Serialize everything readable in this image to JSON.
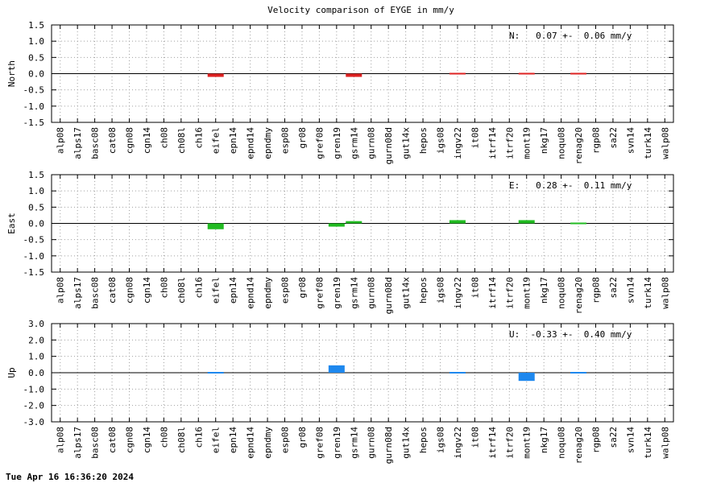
{
  "title": "Velocity comparison of EYGE in mm/y",
  "timestamp": "Tue Apr 16 16:36:20 2024",
  "chart_data": [
    {
      "type": "bar",
      "ylabel": "North",
      "ylim": [
        -1.5,
        1.5
      ],
      "ytick_labels": [
        "1.5",
        "1.0",
        "0.5",
        "0.0",
        "-0.5",
        "-1.0",
        "-1.5"
      ],
      "grid": true,
      "color": "#dd2222",
      "summary": "N:   0.07 +-  0.06 mm/y",
      "categories": [
        "alp08",
        "alps17",
        "basc08",
        "cat08",
        "cgn08",
        "cgn14",
        "ch08",
        "ch08l",
        "ch16",
        "eifel",
        "epn14",
        "epnd14",
        "epndmy",
        "esp08",
        "gr08",
        "gref08",
        "gren19",
        "gsrm14",
        "gurn08",
        "gurn08d",
        "gut14x",
        "hepos",
        "igs08",
        "ingv22",
        "it08",
        "itrf14",
        "itrf20",
        "mont19",
        "nkg17",
        "noqu08",
        "renag20",
        "rgp08",
        "sa22",
        "svn14",
        "turk14",
        "walp08"
      ],
      "values": [
        null,
        null,
        null,
        null,
        null,
        null,
        null,
        null,
        null,
        -0.1,
        null,
        null,
        null,
        null,
        null,
        null,
        null,
        -0.1,
        null,
        null,
        null,
        null,
        null,
        0.03,
        null,
        null,
        null,
        0.0,
        null,
        null,
        -0.03,
        null,
        null,
        null,
        null,
        null
      ]
    },
    {
      "type": "bar",
      "ylabel": "East",
      "ylim": [
        -1.5,
        1.5
      ],
      "ytick_labels": [
        "1.5",
        "1.0",
        "0.5",
        "0.0",
        "-0.5",
        "-1.0",
        "-1.5"
      ],
      "grid": true,
      "color": "#22bb22",
      "summary": "E:   0.28 +-  0.11 mm/y",
      "categories": [
        "alp08",
        "alps17",
        "basc08",
        "cat08",
        "cgn08",
        "cgn14",
        "ch08",
        "ch08l",
        "ch16",
        "eifel",
        "epn14",
        "epnd14",
        "epndmy",
        "esp08",
        "gr08",
        "gref08",
        "gren19",
        "gsrm14",
        "gurn08",
        "gurn08d",
        "gut14x",
        "hepos",
        "igs08",
        "ingv22",
        "it08",
        "itrf14",
        "itrf20",
        "mont19",
        "nkg17",
        "noqu08",
        "renag20",
        "rgp08",
        "sa22",
        "svn14",
        "turk14",
        "walp08"
      ],
      "values": [
        null,
        null,
        null,
        null,
        null,
        null,
        null,
        null,
        null,
        -0.18,
        null,
        null,
        null,
        null,
        null,
        null,
        -0.1,
        0.07,
        null,
        null,
        null,
        null,
        null,
        0.1,
        null,
        null,
        null,
        0.1,
        null,
        null,
        0.02,
        null,
        null,
        null,
        null,
        null
      ]
    },
    {
      "type": "bar",
      "ylabel": "Up",
      "ylim": [
        -3.0,
        3.0
      ],
      "ytick_labels": [
        "3.0",
        "2.0",
        "1.0",
        "0.0",
        "-1.0",
        "-2.0",
        "-3.0"
      ],
      "grid": true,
      "color": "#1e88ee",
      "summary": "U:  -0.33 +-  0.40 mm/y",
      "categories": [
        "alp08",
        "alps17",
        "basc08",
        "cat08",
        "cgn08",
        "cgn14",
        "ch08",
        "ch08l",
        "ch16",
        "eifel",
        "epn14",
        "epnd14",
        "epndmy",
        "esp08",
        "gr08",
        "gref08",
        "gren19",
        "gsrm14",
        "gurn08",
        "gurn08d",
        "gut14x",
        "hepos",
        "igs08",
        "ingv22",
        "it08",
        "itrf14",
        "itrf20",
        "mont19",
        "nkg17",
        "noqu08",
        "renag20",
        "rgp08",
        "sa22",
        "svn14",
        "turk14",
        "walp08"
      ],
      "values": [
        null,
        null,
        null,
        null,
        null,
        null,
        null,
        null,
        null,
        0.03,
        null,
        null,
        null,
        null,
        null,
        null,
        0.45,
        null,
        null,
        null,
        null,
        null,
        null,
        -0.05,
        null,
        null,
        null,
        -0.5,
        null,
        null,
        -0.05,
        null,
        null,
        null,
        null,
        null
      ]
    }
  ]
}
